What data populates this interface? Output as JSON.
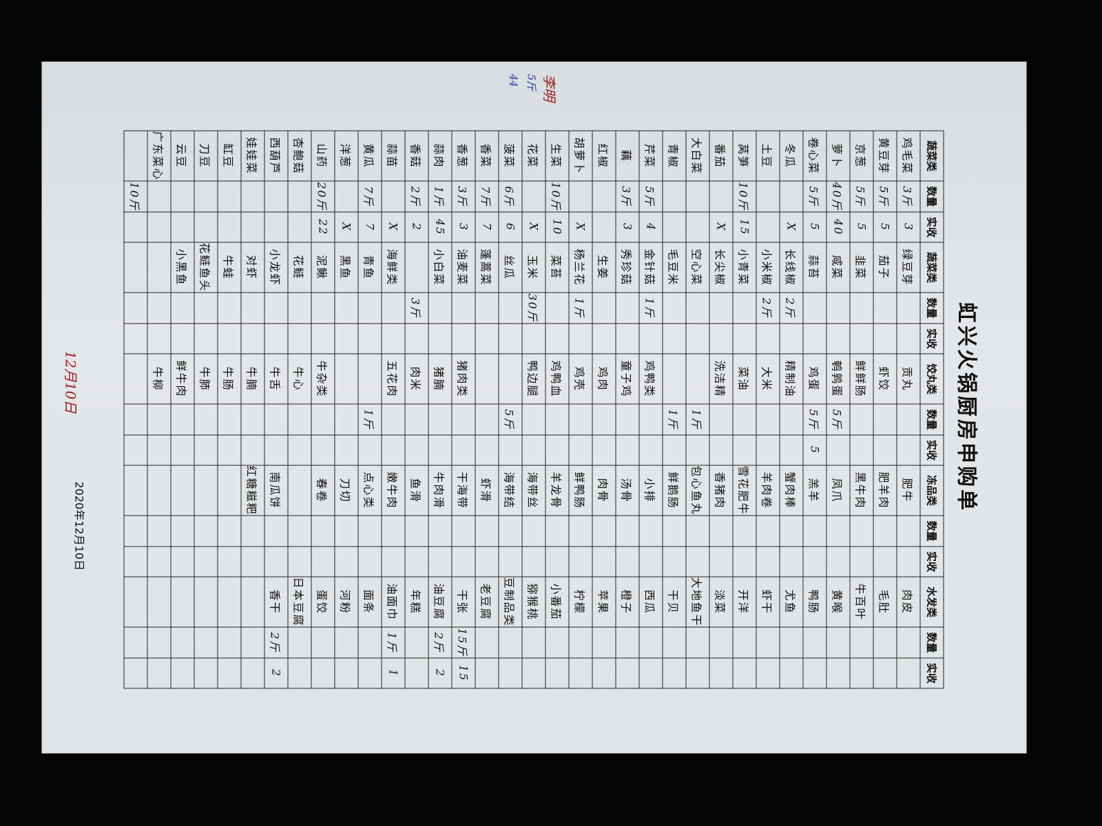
{
  "title": "虹兴火锅厨房申购单",
  "headers": [
    "蔬菜类",
    "数量",
    "实收",
    "蔬菜类",
    "数量",
    "实收",
    "饺丸类",
    "数量",
    "实收",
    "冻品类",
    "数量",
    "实收",
    "水发类",
    "数量",
    "实收"
  ],
  "groups": [
    {
      "rows": [
        [
          "鸡毛菜",
          "3斤",
          "3"
        ],
        [
          "黄豆芽",
          "5斤",
          "5"
        ],
        [
          "京葱",
          "5斤",
          "5"
        ],
        [
          "萝卜",
          "40斤",
          "40"
        ],
        [
          "卷心菜",
          "5斤",
          "5"
        ],
        [
          "冬瓜",
          "",
          "X"
        ],
        [
          "土豆",
          "",
          ""
        ],
        [
          "莴笋",
          "10斤",
          "15"
        ],
        [
          "番茄",
          "",
          "X"
        ],
        [
          "大白菜",
          "",
          ""
        ],
        [
          "青椒",
          "",
          ""
        ],
        [
          "芹菜",
          "5斤",
          "4"
        ],
        [
          "藕",
          "3斤",
          "3"
        ],
        [
          "红椒",
          "",
          ""
        ],
        [
          "胡萝卜",
          "",
          "X"
        ],
        [
          "生菜",
          "10斤",
          "10"
        ],
        [
          "花菜",
          "",
          "X"
        ],
        [
          "菠菜",
          "6斤",
          "6"
        ],
        [
          "香菜",
          "7斤",
          "7"
        ],
        [
          "香葱",
          "3斤",
          "3"
        ],
        [
          "蒜肉",
          "1斤",
          "45"
        ],
        [
          "香菇",
          "2斤",
          "2"
        ],
        [
          "蒜苗",
          "",
          "X"
        ],
        [
          "黄瓜",
          "7斤",
          "7"
        ],
        [
          "洋葱",
          "",
          "X"
        ],
        [
          "山药",
          "20斤",
          "22"
        ],
        [
          "杏鲍菇",
          "",
          ""
        ],
        [
          "西葫芦",
          "",
          ""
        ],
        [
          "娃娃菜",
          "",
          ""
        ],
        [
          "缸豆",
          "",
          ""
        ],
        [
          "刀豆",
          "",
          ""
        ],
        [
          "云豆",
          "",
          ""
        ],
        [
          "广东菜心",
          "",
          ""
        ],
        [
          "",
          "10斤",
          ""
        ]
      ]
    },
    {
      "rows": [
        [
          "绿豆芽",
          "",
          ""
        ],
        [
          "茄子",
          "",
          ""
        ],
        [
          "韭菜",
          "",
          ""
        ],
        [
          "咸菜",
          "",
          ""
        ],
        [
          "蒜苔",
          "",
          ""
        ],
        [
          "长线椒",
          "2斤",
          ""
        ],
        [
          "小米椒",
          "2斤",
          ""
        ],
        [
          "小青菜",
          "",
          ""
        ],
        [
          "长尖椒",
          "",
          ""
        ],
        [
          "空心菜",
          "",
          ""
        ],
        [
          "毛豆米",
          "",
          ""
        ],
        [
          "金针菇",
          "1斤",
          ""
        ],
        [
          "秀珍菇",
          "",
          ""
        ],
        [
          "生姜",
          "",
          ""
        ],
        [
          "杨兰花",
          "1斤",
          ""
        ],
        [
          "菜苔",
          "",
          ""
        ],
        [
          "玉米",
          "30斤",
          ""
        ],
        [
          "丝瓜",
          "",
          ""
        ],
        [
          "蓬蒿菜",
          "",
          ""
        ],
        [
          "油麦菜",
          "",
          ""
        ],
        [
          "小白菜",
          "",
          ""
        ],
        [
          "",
          "3斤",
          ""
        ],
        [
          "海鲜类",
          "",
          ""
        ],
        [
          "青鱼",
          "",
          ""
        ],
        [
          "黑鱼",
          "",
          ""
        ],
        [
          "泥鳅",
          "",
          ""
        ],
        [
          "花鲢",
          "",
          ""
        ],
        [
          "小龙虾",
          "",
          ""
        ],
        [
          "对虾",
          "",
          ""
        ],
        [
          "牛蛙",
          "",
          ""
        ],
        [
          "花鲢鱼头",
          "",
          ""
        ],
        [
          "小黑鱼",
          "",
          ""
        ],
        [
          "",
          "",
          ""
        ],
        [
          "",
          "",
          ""
        ]
      ]
    },
    {
      "rows": [
        [
          "贡丸",
          "",
          ""
        ],
        [
          "虾饺",
          "",
          ""
        ],
        [
          "鲜鲜肠",
          "",
          ""
        ],
        [
          "鹌鹑蛋",
          "5斤",
          ""
        ],
        [
          "鸡蛋",
          "5斤",
          "5"
        ],
        [
          "精制油",
          "",
          ""
        ],
        [
          "大米",
          "",
          ""
        ],
        [
          "菜油",
          "",
          ""
        ],
        [
          "洗洁精",
          "",
          ""
        ],
        [
          "",
          "1斤",
          ""
        ],
        [
          "",
          "1斤",
          ""
        ],
        [
          "鸡鸭类",
          "",
          ""
        ],
        [
          "童子鸡",
          "",
          ""
        ],
        [
          "鸡肉",
          "",
          ""
        ],
        [
          "鸡壳",
          "",
          ""
        ],
        [
          "鸡鸭血",
          "",
          ""
        ],
        [
          "鸭边腿",
          "",
          ""
        ],
        [
          "",
          "5斤",
          ""
        ],
        [
          "",
          "",
          ""
        ],
        [
          "猪肉类",
          "",
          ""
        ],
        [
          "猪腩",
          "",
          ""
        ],
        [
          "肉米",
          "",
          ""
        ],
        [
          "五花肉",
          "",
          ""
        ],
        [
          "",
          "1斤",
          ""
        ],
        [
          "",
          "",
          ""
        ],
        [
          "牛杂类",
          "",
          ""
        ],
        [
          "牛心",
          "",
          ""
        ],
        [
          "牛舌",
          "",
          ""
        ],
        [
          "牛腩",
          "",
          ""
        ],
        [
          "牛肠",
          "",
          ""
        ],
        [
          "牛肺",
          "",
          ""
        ],
        [
          "鲜牛肉",
          "",
          ""
        ],
        [
          "牛柳",
          "",
          ""
        ],
        [
          "",
          "",
          ""
        ]
      ]
    },
    {
      "rows": [
        [
          "肥牛",
          "",
          ""
        ],
        [
          "肥羊肉",
          "",
          ""
        ],
        [
          "黑牛肉",
          "",
          ""
        ],
        [
          "凤爪",
          "",
          ""
        ],
        [
          "羔羊",
          "",
          ""
        ],
        [
          "蟹肉棒",
          "",
          ""
        ],
        [
          "羊肉卷",
          "",
          ""
        ],
        [
          "雪花肥牛",
          "",
          ""
        ],
        [
          "香猪肉",
          "",
          ""
        ],
        [
          "包心鱼丸",
          "",
          ""
        ],
        [
          "鲜鹅肠",
          "",
          ""
        ],
        [
          "小排",
          "",
          ""
        ],
        [
          "汤骨",
          "",
          ""
        ],
        [
          "肉骨",
          "",
          ""
        ],
        [
          "鲜鸭肠",
          "",
          ""
        ],
        [
          "羊龙骨",
          "",
          ""
        ],
        [
          "海带丝",
          "",
          ""
        ],
        [
          "海带结",
          "",
          ""
        ],
        [
          "虾滑",
          "",
          ""
        ],
        [
          "干海带",
          "",
          ""
        ],
        [
          "牛肉滑",
          "",
          ""
        ],
        [
          "鱼滑",
          "",
          ""
        ],
        [
          "嫩牛肉",
          "",
          ""
        ],
        [
          "点心类",
          "",
          ""
        ],
        [
          "刀切",
          "",
          ""
        ],
        [
          "春卷",
          "",
          ""
        ],
        [
          "",
          "",
          ""
        ],
        [
          "南瓜饼",
          "",
          ""
        ],
        [
          "红糖糍粑",
          "",
          ""
        ],
        [
          "",
          "",
          ""
        ],
        [
          "",
          "",
          ""
        ],
        [
          "",
          "",
          ""
        ],
        [
          "",
          "",
          ""
        ],
        [
          "",
          "",
          ""
        ]
      ]
    },
    {
      "rows": [
        [
          "肉皮",
          "",
          ""
        ],
        [
          "毛肚",
          "",
          ""
        ],
        [
          "牛百叶",
          "",
          ""
        ],
        [
          "黄喉",
          "",
          ""
        ],
        [
          "鸭肠",
          "",
          ""
        ],
        [
          "尤鱼",
          "",
          ""
        ],
        [
          "虾干",
          "",
          ""
        ],
        [
          "开洋",
          "",
          ""
        ],
        [
          "淡菜",
          "",
          ""
        ],
        [
          "大地鱼干",
          "",
          ""
        ],
        [
          "干贝",
          "",
          ""
        ],
        [
          "西瓜",
          "",
          ""
        ],
        [
          "橙子",
          "",
          ""
        ],
        [
          "苹果",
          "",
          ""
        ],
        [
          "柠檬",
          "",
          ""
        ],
        [
          "小番茄",
          "",
          ""
        ],
        [
          "猕猴桃",
          "",
          ""
        ],
        [
          "豆制品类",
          "",
          ""
        ],
        [
          "老豆腐",
          "",
          ""
        ],
        [
          "干张",
          "15斤",
          "15"
        ],
        [
          "油豆腐",
          "2斤",
          "2"
        ],
        [
          "年糕",
          "",
          ""
        ],
        [
          "油面巾",
          "1斤",
          "1"
        ],
        [
          "面条",
          "",
          ""
        ],
        [
          "河粉",
          "",
          ""
        ],
        [
          "蛋饺",
          "",
          ""
        ],
        [
          "日本豆腐",
          "",
          ""
        ],
        [
          "香干",
          "2斤",
          "2"
        ],
        [
          "",
          "",
          ""
        ],
        [
          "",
          "",
          ""
        ],
        [
          "",
          "",
          ""
        ],
        [
          "",
          "",
          ""
        ],
        [
          "",
          "",
          ""
        ],
        [
          "",
          "",
          ""
        ]
      ]
    }
  ],
  "date": "2020年12月10日",
  "notes": {
    "left": "12月10日",
    "top_name": "李明",
    "top_qty1": "5斤",
    "top_qty2": "44"
  }
}
